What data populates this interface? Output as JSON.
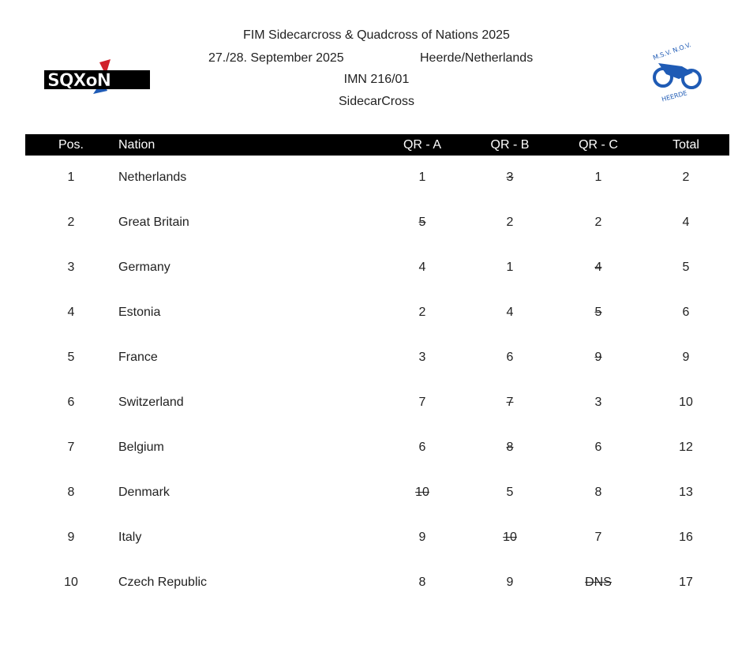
{
  "header": {
    "title": "FIM Sidecarcross & Quadcross of Nations 2025",
    "date": "27./28. September 2025",
    "venue": "Heerde/Netherlands",
    "code": "IMN 216/01",
    "class": "SidecarCross",
    "logo_left_text": "SQXoN",
    "logo_right_text": "M.S.V. N.O.V. HEERDE"
  },
  "table": {
    "columns": [
      "Pos.",
      "Nation",
      "QR - A",
      "QR - B",
      "QR - C",
      "Total"
    ],
    "rows": [
      {
        "pos": "1",
        "nation": "Netherlands",
        "a": "1",
        "b": "3",
        "c": "1",
        "total": "2",
        "dropped": "b"
      },
      {
        "pos": "2",
        "nation": "Great Britain",
        "a": "5",
        "b": "2",
        "c": "2",
        "total": "4",
        "dropped": "a"
      },
      {
        "pos": "3",
        "nation": "Germany",
        "a": "4",
        "b": "1",
        "c": "4",
        "total": "5",
        "dropped": "c"
      },
      {
        "pos": "4",
        "nation": "Estonia",
        "a": "2",
        "b": "4",
        "c": "5",
        "total": "6",
        "dropped": "c"
      },
      {
        "pos": "5",
        "nation": "France",
        "a": "3",
        "b": "6",
        "c": "9",
        "total": "9",
        "dropped": "c"
      },
      {
        "pos": "6",
        "nation": "Switzerland",
        "a": "7",
        "b": "7",
        "c": "3",
        "total": "10",
        "dropped": "b"
      },
      {
        "pos": "7",
        "nation": "Belgium",
        "a": "6",
        "b": "8",
        "c": "6",
        "total": "12",
        "dropped": "b"
      },
      {
        "pos": "8",
        "nation": "Denmark",
        "a": "10",
        "b": "5",
        "c": "8",
        "total": "13",
        "dropped": "a"
      },
      {
        "pos": "9",
        "nation": "Italy",
        "a": "9",
        "b": "10",
        "c": "7",
        "total": "16",
        "dropped": "b"
      },
      {
        "pos": "10",
        "nation": "Czech Republic",
        "a": "8",
        "b": "9",
        "c": "DNS",
        "total": "17",
        "dropped": "c"
      }
    ]
  },
  "colors": {
    "header_bg": "#000000",
    "header_text": "#ffffff",
    "logo_blue": "#1f5bb5",
    "logo_red": "#d0202a"
  }
}
